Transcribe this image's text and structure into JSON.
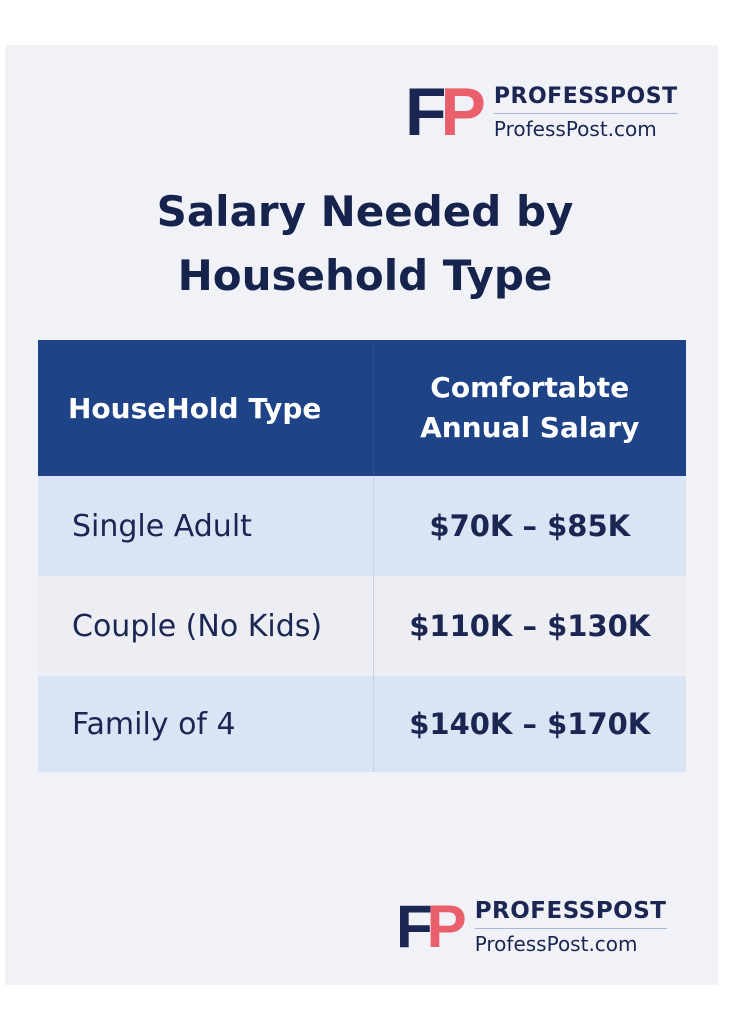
{
  "logo_top": {
    "mark_f": "F",
    "mark_p": "P",
    "brand": "PROFESSPOST",
    "url": "ProfessPost.com"
  },
  "title": {
    "line1": "Salary Needed by",
    "line2": "Household Type"
  },
  "table": {
    "headers": [
      "HouseHold Type",
      "Comfortabte",
      "Annual Salary"
    ],
    "rows": [
      {
        "type": "Single Adult",
        "salary": "$70K – $85K"
      },
      {
        "type": "Couple (No Kids)",
        "salary": "$110K – $130K"
      },
      {
        "type": "Family of 4",
        "salary": "$140K – $170K"
      }
    ]
  },
  "logo_bottom": {
    "mark_f": "F",
    "mark_p": "P",
    "brand": "PROFESSPOST",
    "url": "ProfessPost.com"
  },
  "colors": {
    "header_bg": "#1f4387",
    "row_alt": "#d9e4f5",
    "brand_navy": "#1b2652",
    "brand_pink": "#e9606c"
  }
}
